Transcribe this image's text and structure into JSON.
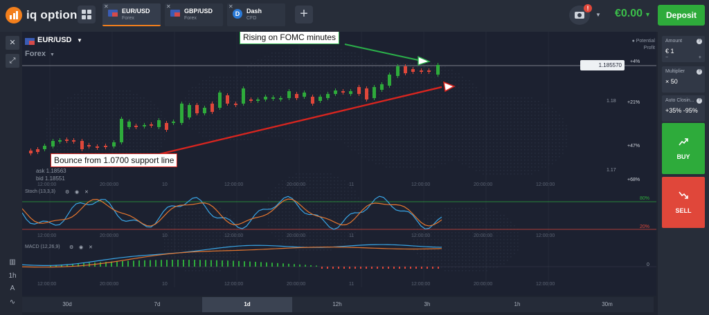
{
  "header": {
    "logo_text": "iq option",
    "tabs": [
      {
        "name": "EUR/USD",
        "sub": "Forex"
      },
      {
        "name": "GBP/USD",
        "sub": "Forex"
      },
      {
        "name": "Dash",
        "sub": "CFD"
      }
    ],
    "notification_count": "!",
    "balance": "€0.00",
    "deposit_label": "Deposit"
  },
  "asset": {
    "name": "EUR/USD",
    "category": "Forex",
    "potential_profit_label": "Potential Profit"
  },
  "chart": {
    "current_price": "1.185570",
    "ask": "ask 1.18563",
    "bid": "bid 1.18551",
    "price_labels": [
      "1.18",
      "1.17"
    ],
    "profit_levels": [
      "+4%",
      "+21%",
      "+47%",
      "+68%"
    ],
    "time_labels": [
      "12:00:00",
      "20:00:00",
      "10",
      "12:00:00",
      "20:00:00",
      "11",
      "12:00:00",
      "20:00:00",
      "12:00:00"
    ],
    "stoch_label": "Stoch (13,3,3)",
    "stoch_upper": "80%",
    "stoch_lower": "20%",
    "macd_label": "MACD (12,26,9)",
    "macd_zero": "0",
    "annotation_top": "Rising on FOMC minutes",
    "annotation_bottom": "Bounce from 1.0700 support line",
    "colors": {
      "up": "#2eab3b",
      "down": "#e0473a",
      "stoch_fast": "#3aa7e8",
      "stoch_slow": "#e8772e"
    }
  },
  "timeframes": [
    "30d",
    "7d",
    "1d",
    "12h",
    "3h",
    "1h",
    "30m"
  ],
  "active_timeframe": "1d",
  "panel": {
    "amount_label": "Amount",
    "amount_value": "€ 1",
    "multiplier_label": "Multiplier",
    "multiplier_value": "× 50",
    "autoclose_label": "Auto Closin...",
    "autoclose_value": "+35% -95%",
    "buy_label": "BUY",
    "sell_label": "SELL"
  }
}
